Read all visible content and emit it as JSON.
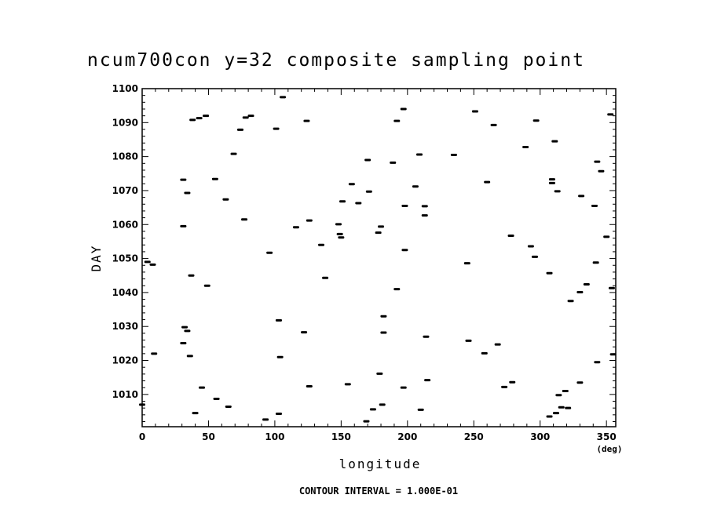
{
  "chart_data": {
    "type": "scatter",
    "title": "ncum700con y=32 composite sampling point",
    "xlabel": "longitude",
    "ylabel": "DAY",
    "x_unit": "(deg)",
    "xlim": [
      0,
      357
    ],
    "ylim": [
      1000.5,
      1100
    ],
    "x_ticks": [
      0,
      50,
      100,
      150,
      200,
      250,
      300,
      350
    ],
    "y_ticks": [
      1010,
      1020,
      1030,
      1040,
      1050,
      1060,
      1070,
      1080,
      1090,
      1100
    ],
    "footer": "CONTOUR INTERVAL = 1.000E-01",
    "points": [
      [
        106,
        1097.5
      ],
      [
        197,
        1094
      ],
      [
        251,
        1093.3
      ],
      [
        353,
        1092.4
      ],
      [
        48,
        1092
      ],
      [
        82,
        1092
      ],
      [
        38,
        1090.8
      ],
      [
        43,
        1091.3
      ],
      [
        78,
        1091.5
      ],
      [
        124,
        1090.5
      ],
      [
        192,
        1090.5
      ],
      [
        297,
        1090.6
      ],
      [
        265,
        1089.3
      ],
      [
        101,
        1088.2
      ],
      [
        74,
        1087.9
      ],
      [
        311,
        1084.5
      ],
      [
        289,
        1082.8
      ],
      [
        69,
        1080.8
      ],
      [
        235,
        1080.5
      ],
      [
        209,
        1080.6
      ],
      [
        170,
        1079
      ],
      [
        189,
        1078.2
      ],
      [
        343,
        1078.5
      ],
      [
        346,
        1075.7
      ],
      [
        31,
        1073.2
      ],
      [
        55,
        1073.4
      ],
      [
        260,
        1072.5
      ],
      [
        309,
        1073.3
      ],
      [
        158,
        1071.9
      ],
      [
        206,
        1071.2
      ],
      [
        309,
        1072.2
      ],
      [
        34,
        1069.3
      ],
      [
        171,
        1069.7
      ],
      [
        313,
        1069.8
      ],
      [
        331,
        1068.4
      ],
      [
        63,
        1067.4
      ],
      [
        151,
        1066.8
      ],
      [
        163,
        1066.3
      ],
      [
        198,
        1065.5
      ],
      [
        213,
        1065.4
      ],
      [
        341,
        1065.5
      ],
      [
        213,
        1062.7
      ],
      [
        77,
        1061.5
      ],
      [
        126,
        1061.2
      ],
      [
        31,
        1059.5
      ],
      [
        116,
        1059.2
      ],
      [
        148,
        1060.1
      ],
      [
        180,
        1059.4
      ],
      [
        149,
        1057.2
      ],
      [
        178,
        1057.6
      ],
      [
        278,
        1056.7
      ],
      [
        150,
        1056.2
      ],
      [
        350,
        1056.4
      ],
      [
        135,
        1054
      ],
      [
        293,
        1053.6
      ],
      [
        198,
        1052.5
      ],
      [
        96,
        1051.7
      ],
      [
        296,
        1050.5
      ],
      [
        4,
        1049
      ],
      [
        8,
        1048.2
      ],
      [
        245,
        1048.6
      ],
      [
        342,
        1048.8
      ],
      [
        37,
        1045
      ],
      [
        307,
        1045.7
      ],
      [
        138,
        1044.3
      ],
      [
        335,
        1042.4
      ],
      [
        49,
        1042
      ],
      [
        354,
        1041.3
      ],
      [
        192,
        1041
      ],
      [
        330,
        1040.1
      ],
      [
        323,
        1037.5
      ],
      [
        182,
        1033
      ],
      [
        103,
        1031.8
      ],
      [
        32,
        1029.8
      ],
      [
        34,
        1028.7
      ],
      [
        122,
        1028.3
      ],
      [
        182,
        1028.2
      ],
      [
        214,
        1027
      ],
      [
        31,
        1025.1
      ],
      [
        246,
        1025.8
      ],
      [
        268,
        1024.7
      ],
      [
        9,
        1022
      ],
      [
        258,
        1022.1
      ],
      [
        36,
        1021.3
      ],
      [
        104,
        1021
      ],
      [
        343,
        1019.5
      ],
      [
        355,
        1021.8
      ],
      [
        179,
        1016.1
      ],
      [
        215,
        1014.2
      ],
      [
        279,
        1013.6
      ],
      [
        330,
        1013.5
      ],
      [
        155,
        1013
      ],
      [
        45,
        1012
      ],
      [
        126,
        1012.4
      ],
      [
        197,
        1012
      ],
      [
        273,
        1012.2
      ],
      [
        319,
        1011
      ],
      [
        314,
        1009.8
      ],
      [
        56,
        1008.7
      ],
      [
        0,
        1007
      ],
      [
        181,
        1007
      ],
      [
        65,
        1006.4
      ],
      [
        174,
        1005.6
      ],
      [
        210,
        1005.5
      ],
      [
        316,
        1006.2
      ],
      [
        321,
        1006
      ],
      [
        40,
        1004.5
      ],
      [
        103,
        1004.3
      ],
      [
        312,
        1004.5
      ],
      [
        307,
        1003.5
      ],
      [
        93,
        1002.6
      ],
      [
        169,
        1002.1
      ]
    ]
  }
}
